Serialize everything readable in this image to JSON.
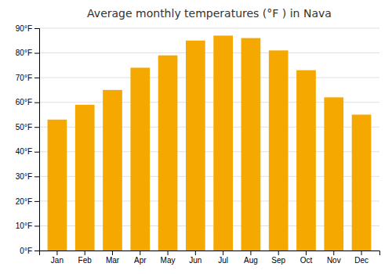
{
  "chart_data": {
    "type": "bar",
    "title": "Average monthly temperatures (°F ) in Nava",
    "categories": [
      "Jan",
      "Feb",
      "Mar",
      "Apr",
      "May",
      "Jun",
      "Jul",
      "Aug",
      "Sep",
      "Oct",
      "Nov",
      "Dec"
    ],
    "values": [
      53,
      59,
      65,
      74,
      79,
      85,
      87,
      86,
      81,
      73,
      62,
      55
    ],
    "color": "#F5A800",
    "ylim": [
      0,
      90
    ],
    "yticks": [
      {
        "value": 0,
        "label": "0°F"
      },
      {
        "value": 10,
        "label": "10°F"
      },
      {
        "value": 20,
        "label": "20°F"
      },
      {
        "value": 30,
        "label": "30°F"
      },
      {
        "value": 40,
        "label": "40°F"
      },
      {
        "value": 50,
        "label": "50°F"
      },
      {
        "value": 60,
        "label": "60°F"
      },
      {
        "value": 70,
        "label": "70°F"
      },
      {
        "value": 80,
        "label": "80°F"
      },
      {
        "value": 90,
        "label": "90°F"
      }
    ],
    "grid": true
  }
}
